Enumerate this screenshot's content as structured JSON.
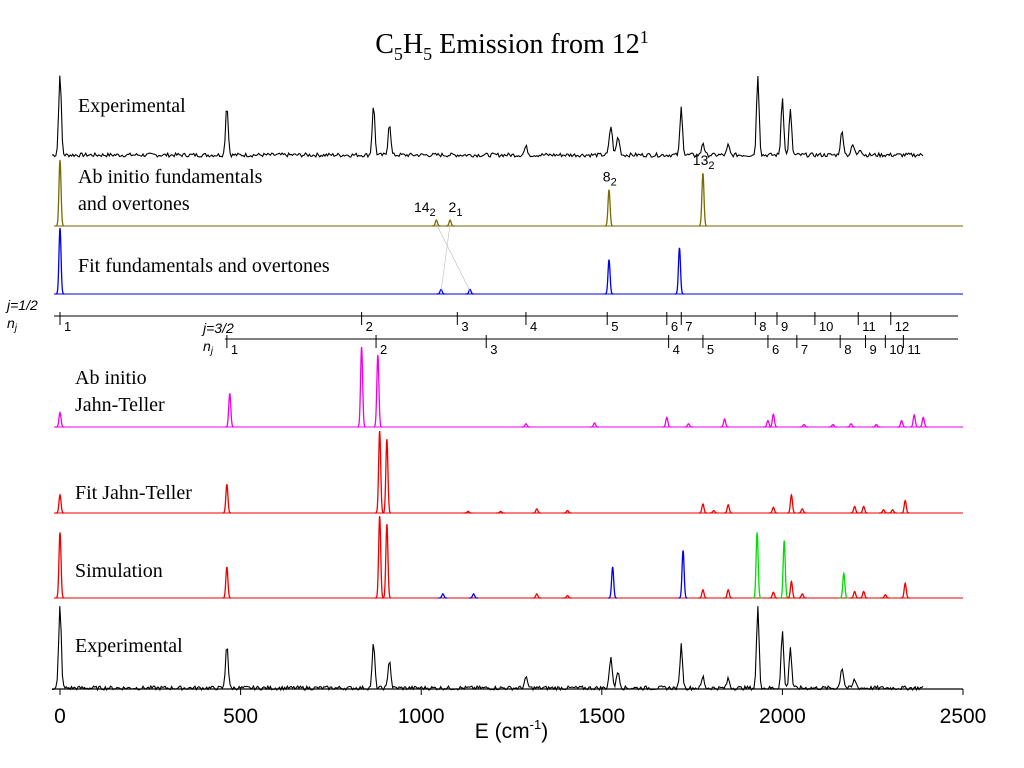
{
  "title": {
    "pre": "C",
    "sub1": "5",
    "mid": "H",
    "sub2": "5",
    "post": " Emission from 12",
    "sup": "1"
  },
  "chart_data": {
    "type": "line",
    "x_axis": {
      "label": "E (cm",
      "label_sup": "-1",
      "label_close": ")",
      "min": 0,
      "max": 2500,
      "ticks": [
        0,
        500,
        1000,
        1500,
        2000,
        2500
      ],
      "tick_labels": [
        "0",
        "500",
        "1000",
        "1500",
        "2000",
        "2500"
      ]
    },
    "colors": {
      "black": "#000000",
      "olive": "#7a6a00",
      "blue": "#0000ee",
      "magenta": "#ee00ee",
      "red": "#ee0000",
      "green": "#00dd00"
    },
    "panels": [
      {
        "id": "experimental-top",
        "label_lines": [
          "Experimental"
        ],
        "peaks": [
          {
            "x": 0,
            "h": 1.0,
            "w": 5,
            "c": "black"
          },
          {
            "x": 462,
            "h": 0.62,
            "w": 5,
            "c": "black"
          },
          {
            "x": 868,
            "h": 0.62,
            "w": 5,
            "c": "black"
          },
          {
            "x": 912,
            "h": 0.4,
            "w": 5,
            "c": "black"
          },
          {
            "x": 1290,
            "h": 0.1,
            "w": 6,
            "c": "black"
          },
          {
            "x": 1525,
            "h": 0.35,
            "w": 6,
            "c": "black"
          },
          {
            "x": 1545,
            "h": 0.22,
            "w": 6,
            "c": "black"
          },
          {
            "x": 1720,
            "h": 0.58,
            "w": 5,
            "c": "black"
          },
          {
            "x": 1780,
            "h": 0.16,
            "w": 5,
            "c": "black"
          },
          {
            "x": 1850,
            "h": 0.12,
            "w": 5,
            "c": "black"
          },
          {
            "x": 1932,
            "h": 0.98,
            "w": 5,
            "c": "black"
          },
          {
            "x": 2000,
            "h": 0.72,
            "w": 5,
            "c": "black"
          },
          {
            "x": 2022,
            "h": 0.55,
            "w": 5,
            "c": "black"
          },
          {
            "x": 2165,
            "h": 0.28,
            "w": 6,
            "c": "black"
          },
          {
            "x": 2195,
            "h": 0.12,
            "w": 6,
            "c": "black"
          },
          {
            "x": 2215,
            "h": 0.08,
            "w": 6,
            "c": "black"
          }
        ],
        "noise": true,
        "xmax": 2390
      },
      {
        "id": "ab-initio-fundamentals",
        "label_lines": [
          "Ab initio fundamentals",
          "and overtones"
        ],
        "peaks": [
          {
            "x": 0,
            "h": 1.0,
            "w": 4,
            "c": "olive"
          },
          {
            "x": 1042,
            "h": 0.09,
            "w": 4,
            "c": "olive"
          },
          {
            "x": 1080,
            "h": 0.09,
            "w": 4,
            "c": "olive"
          },
          {
            "x": 1520,
            "h": 0.55,
            "w": 4,
            "c": "olive"
          },
          {
            "x": 1780,
            "h": 0.8,
            "w": 4,
            "c": "olive"
          }
        ],
        "peak_labels": [
          {
            "x": 1010,
            "base": "14",
            "sub": "2"
          },
          {
            "x": 1095,
            "base": "2",
            "sub": "1"
          },
          {
            "x": 1522,
            "base": "8",
            "sub": "2"
          },
          {
            "x": 1782,
            "base": "13",
            "sub": "2"
          }
        ]
      },
      {
        "id": "fit-fundamentals",
        "label_lines": [
          "Fit fundamentals and overtones"
        ],
        "peaks": [
          {
            "x": 0,
            "h": 1.0,
            "w": 4,
            "c": "blue"
          },
          {
            "x": 1055,
            "h": 0.07,
            "w": 4,
            "c": "blue"
          },
          {
            "x": 1135,
            "h": 0.07,
            "w": 4,
            "c": "blue"
          },
          {
            "x": 1520,
            "h": 0.52,
            "w": 4,
            "c": "blue"
          },
          {
            "x": 1715,
            "h": 0.7,
            "w": 4,
            "c": "blue"
          }
        ]
      },
      {
        "id": "ab-initio-jahn-teller",
        "label_lines": [
          "Ab initio",
          "Jahn-Teller"
        ],
        "peaks": [
          {
            "x": 0,
            "h": 0.18,
            "w": 4,
            "c": "magenta"
          },
          {
            "x": 470,
            "h": 0.42,
            "w": 4,
            "c": "magenta"
          },
          {
            "x": 835,
            "h": 1.0,
            "w": 4,
            "c": "magenta"
          },
          {
            "x": 880,
            "h": 0.9,
            "w": 4,
            "c": "magenta"
          },
          {
            "x": 1290,
            "h": 0.04,
            "w": 4,
            "c": "magenta"
          },
          {
            "x": 1480,
            "h": 0.05,
            "w": 4,
            "c": "magenta"
          },
          {
            "x": 1680,
            "h": 0.12,
            "w": 4,
            "c": "magenta"
          },
          {
            "x": 1740,
            "h": 0.04,
            "w": 4,
            "c": "magenta"
          },
          {
            "x": 1840,
            "h": 0.1,
            "w": 4,
            "c": "magenta"
          },
          {
            "x": 1960,
            "h": 0.08,
            "w": 4,
            "c": "magenta"
          },
          {
            "x": 1975,
            "h": 0.16,
            "w": 4,
            "c": "magenta"
          },
          {
            "x": 2060,
            "h": 0.03,
            "w": 4,
            "c": "magenta"
          },
          {
            "x": 2140,
            "h": 0.03,
            "w": 4,
            "c": "magenta"
          },
          {
            "x": 2190,
            "h": 0.04,
            "w": 4,
            "c": "magenta"
          },
          {
            "x": 2260,
            "h": 0.03,
            "w": 4,
            "c": "magenta"
          },
          {
            "x": 2330,
            "h": 0.08,
            "w": 4,
            "c": "magenta"
          },
          {
            "x": 2365,
            "h": 0.15,
            "w": 4,
            "c": "magenta"
          },
          {
            "x": 2390,
            "h": 0.12,
            "w": 4,
            "c": "magenta"
          }
        ]
      },
      {
        "id": "fit-jahn-teller",
        "label_lines": [
          "Fit Jahn-Teller"
        ],
        "peaks": [
          {
            "x": 0,
            "h": 0.22,
            "w": 4,
            "c": "red"
          },
          {
            "x": 462,
            "h": 0.35,
            "w": 4,
            "c": "red"
          },
          {
            "x": 885,
            "h": 1.0,
            "w": 4,
            "c": "red"
          },
          {
            "x": 905,
            "h": 0.9,
            "w": 4,
            "c": "red"
          },
          {
            "x": 1130,
            "h": 0.02,
            "w": 4,
            "c": "red"
          },
          {
            "x": 1220,
            "h": 0.02,
            "w": 4,
            "c": "red"
          },
          {
            "x": 1320,
            "h": 0.05,
            "w": 4,
            "c": "red"
          },
          {
            "x": 1405,
            "h": 0.03,
            "w": 4,
            "c": "red"
          },
          {
            "x": 1780,
            "h": 0.11,
            "w": 4,
            "c": "red"
          },
          {
            "x": 1810,
            "h": 0.03,
            "w": 4,
            "c": "red"
          },
          {
            "x": 1850,
            "h": 0.1,
            "w": 4,
            "c": "red"
          },
          {
            "x": 1975,
            "h": 0.07,
            "w": 4,
            "c": "red"
          },
          {
            "x": 2025,
            "h": 0.22,
            "w": 4,
            "c": "red"
          },
          {
            "x": 2055,
            "h": 0.05,
            "w": 4,
            "c": "red"
          },
          {
            "x": 2200,
            "h": 0.08,
            "w": 4,
            "c": "red"
          },
          {
            "x": 2225,
            "h": 0.08,
            "w": 4,
            "c": "red"
          },
          {
            "x": 2280,
            "h": 0.04,
            "w": 4,
            "c": "red"
          },
          {
            "x": 2305,
            "h": 0.04,
            "w": 4,
            "c": "red"
          },
          {
            "x": 2340,
            "h": 0.15,
            "w": 4,
            "c": "red"
          }
        ]
      },
      {
        "id": "simulation",
        "label_lines": [
          "Simulation"
        ],
        "peaks": [
          {
            "x": 0,
            "h": 0.8,
            "w": 4,
            "c": "red"
          },
          {
            "x": 462,
            "h": 0.38,
            "w": 4,
            "c": "red"
          },
          {
            "x": 885,
            "h": 1.0,
            "w": 4,
            "c": "red"
          },
          {
            "x": 905,
            "h": 0.9,
            "w": 4,
            "c": "red"
          },
          {
            "x": 1060,
            "h": 0.05,
            "w": 4,
            "c": "blue"
          },
          {
            "x": 1145,
            "h": 0.05,
            "w": 4,
            "c": "blue"
          },
          {
            "x": 1320,
            "h": 0.05,
            "w": 4,
            "c": "red"
          },
          {
            "x": 1405,
            "h": 0.03,
            "w": 4,
            "c": "red"
          },
          {
            "x": 1530,
            "h": 0.38,
            "w": 4,
            "c": "blue"
          },
          {
            "x": 1725,
            "h": 0.58,
            "w": 4,
            "c": "blue"
          },
          {
            "x": 1780,
            "h": 0.1,
            "w": 4,
            "c": "red"
          },
          {
            "x": 1850,
            "h": 0.1,
            "w": 4,
            "c": "red"
          },
          {
            "x": 1930,
            "h": 0.8,
            "w": 4,
            "c": "green"
          },
          {
            "x": 1975,
            "h": 0.07,
            "w": 4,
            "c": "red"
          },
          {
            "x": 2005,
            "h": 0.7,
            "w": 4,
            "c": "green"
          },
          {
            "x": 2025,
            "h": 0.2,
            "w": 4,
            "c": "red"
          },
          {
            "x": 2055,
            "h": 0.05,
            "w": 4,
            "c": "red"
          },
          {
            "x": 2170,
            "h": 0.3,
            "w": 4,
            "c": "green"
          },
          {
            "x": 2200,
            "h": 0.08,
            "w": 4,
            "c": "red"
          },
          {
            "x": 2225,
            "h": 0.08,
            "w": 4,
            "c": "red"
          },
          {
            "x": 2285,
            "h": 0.04,
            "w": 4,
            "c": "red"
          },
          {
            "x": 2340,
            "h": 0.18,
            "w": 4,
            "c": "red"
          }
        ]
      },
      {
        "id": "experimental-bottom",
        "label_lines": [
          "Experimental"
        ],
        "peaks": [
          {
            "x": 0,
            "h": 1.0,
            "w": 5,
            "c": "black"
          },
          {
            "x": 462,
            "h": 0.55,
            "w": 5,
            "c": "black"
          },
          {
            "x": 868,
            "h": 0.55,
            "w": 5,
            "c": "black"
          },
          {
            "x": 912,
            "h": 0.36,
            "w": 5,
            "c": "black"
          },
          {
            "x": 1290,
            "h": 0.12,
            "w": 6,
            "c": "black"
          },
          {
            "x": 1525,
            "h": 0.36,
            "w": 6,
            "c": "black"
          },
          {
            "x": 1545,
            "h": 0.2,
            "w": 6,
            "c": "black"
          },
          {
            "x": 1720,
            "h": 0.53,
            "w": 5,
            "c": "black"
          },
          {
            "x": 1780,
            "h": 0.14,
            "w": 5,
            "c": "black"
          },
          {
            "x": 1850,
            "h": 0.12,
            "w": 5,
            "c": "black"
          },
          {
            "x": 1932,
            "h": 0.98,
            "w": 5,
            "c": "black"
          },
          {
            "x": 2000,
            "h": 0.7,
            "w": 5,
            "c": "black"
          },
          {
            "x": 2022,
            "h": 0.5,
            "w": 5,
            "c": "black"
          },
          {
            "x": 2165,
            "h": 0.25,
            "w": 6,
            "c": "black"
          },
          {
            "x": 2200,
            "h": 0.1,
            "w": 6,
            "c": "black"
          }
        ],
        "noise": true,
        "xmax": 2390
      }
    ],
    "level_rows": [
      {
        "name_j": "j=1/2",
        "name_n": "n",
        "name_n_sub": "j",
        "ticks": [
          {
            "x": 0,
            "label": "1"
          },
          {
            "x": 835,
            "label": "2"
          },
          {
            "x": 1100,
            "label": "3"
          },
          {
            "x": 1290,
            "label": "4"
          },
          {
            "x": 1515,
            "label": "5"
          },
          {
            "x": 1680,
            "label": "6"
          },
          {
            "x": 1720,
            "label": "7"
          },
          {
            "x": 1925,
            "label": "8"
          },
          {
            "x": 1985,
            "label": "9"
          },
          {
            "x": 2090,
            "label": "10"
          },
          {
            "x": 2210,
            "label": "11"
          },
          {
            "x": 2300,
            "label": "12"
          }
        ]
      },
      {
        "name_j": "j=3/2",
        "name_n": "n",
        "name_n_sub": "j",
        "ticks": [
          {
            "x": 462,
            "label": "1"
          },
          {
            "x": 875,
            "label": "2"
          },
          {
            "x": 1180,
            "label": "3"
          },
          {
            "x": 1685,
            "label": "4"
          },
          {
            "x": 1780,
            "label": "5"
          },
          {
            "x": 1960,
            "label": "6"
          },
          {
            "x": 2040,
            "label": "7"
          },
          {
            "x": 2160,
            "label": "8"
          },
          {
            "x": 2230,
            "label": "9"
          },
          {
            "x": 2285,
            "label": "10"
          },
          {
            "x": 2335,
            "label": "11"
          }
        ]
      }
    ]
  }
}
